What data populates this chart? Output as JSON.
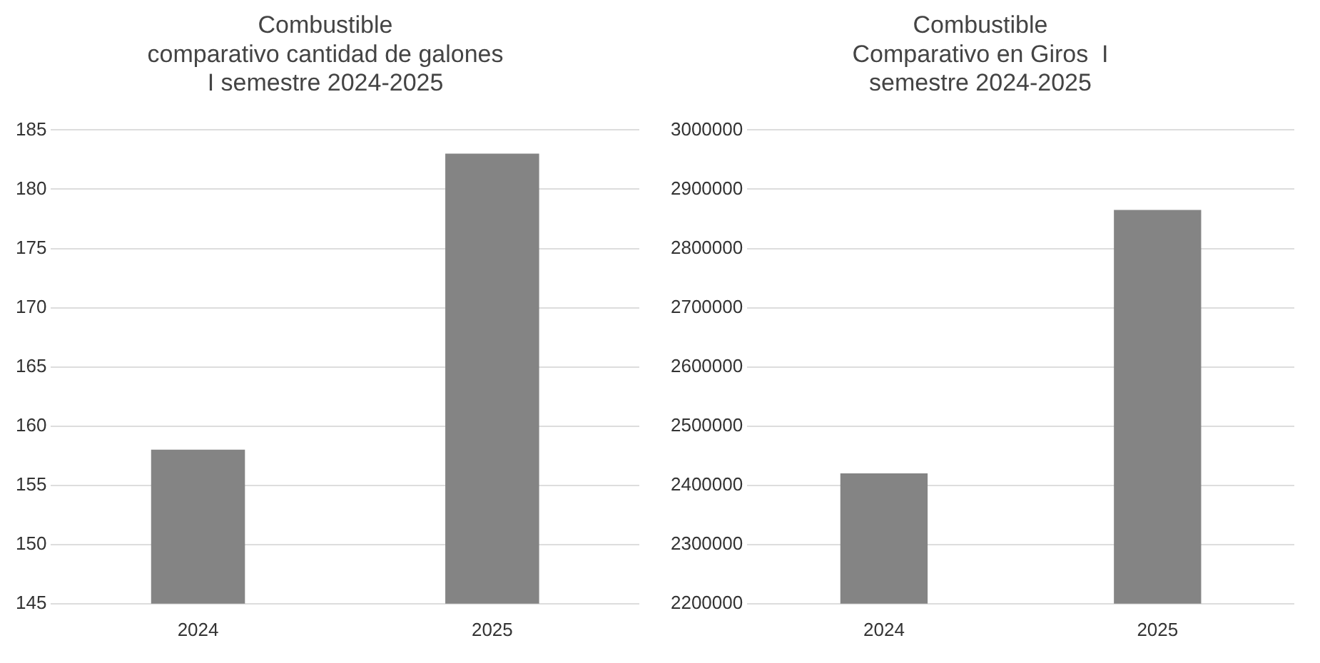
{
  "chart_data": [
    {
      "type": "bar",
      "title": "Combustible\ncomparativo cantidad de galones\nI semestre 2024-2025",
      "categories": [
        "2024",
        "2025"
      ],
      "values": [
        158,
        183
      ],
      "color": "#848484",
      "ylim": [
        145,
        185
      ],
      "yticks": [
        145,
        150,
        155,
        160,
        165,
        170,
        175,
        180,
        185
      ],
      "grid": "y"
    },
    {
      "type": "bar",
      "title": "Combustible\nComparativo en Giros  I\nsemestre 2024-2025",
      "categories": [
        "2024",
        "2025"
      ],
      "values": [
        2420000,
        2865000
      ],
      "color": "#848484",
      "ylim": [
        2200000,
        3000000
      ],
      "yticks": [
        2200000,
        2300000,
        2400000,
        2500000,
        2600000,
        2700000,
        2800000,
        2900000,
        3000000
      ],
      "grid": "y"
    }
  ]
}
